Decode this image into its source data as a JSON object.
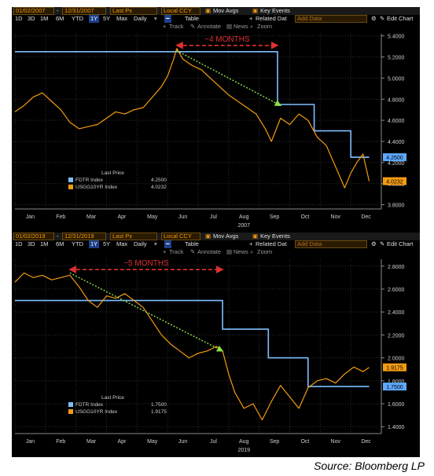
{
  "source": "Source: Bloomberg LP",
  "panels": [
    {
      "toolbar": {
        "start_date": "01/02/2007",
        "end_date": "12/31/2007",
        "field": "Last Px",
        "currency": "Local CCY",
        "mov_avgs": "Mov Avgs",
        "key_events": "Key Events",
        "periods": [
          "1D",
          "3D",
          "1M",
          "6M",
          "YTD",
          "1Y",
          "5Y",
          "Max"
        ],
        "active_period": "1Y",
        "frequency": "Daily",
        "table": "Table",
        "related_data": "Related Dat",
        "add_data": "Add Data",
        "edit_chart": "Edit Chart",
        "track": "Track",
        "annotate": "Annotate",
        "news": "News",
        "zoom": "Zoom"
      },
      "annotation": "~4 MONTHS",
      "legend": {
        "title": "Last Price",
        "items": [
          {
            "name": "FDTR Index",
            "value": "4.2500"
          },
          {
            "name": "USGG10YR Index",
            "value": "4.0232"
          }
        ]
      },
      "year_label": "2007",
      "chart_data": {
        "type": "line",
        "x_labels": [
          "Jan",
          "Feb",
          "Mar",
          "Apr",
          "May",
          "Jun",
          "Jul",
          "Aug",
          "Sep",
          "Oct",
          "Nov",
          "Dec"
        ],
        "y_ticks": [
          "5.4000",
          "5.2000",
          "5.0000",
          "4.8000",
          "4.6000",
          "4.4000",
          "4.2000",
          "4.0000",
          "3.8000"
        ],
        "y_tick_values": [
          5.4,
          5.2,
          5.0,
          4.8,
          4.6,
          4.4,
          4.2,
          4.0,
          3.8
        ],
        "ylim": [
          3.76,
          5.42
        ],
        "last_labels": [
          {
            "text": "4.2500",
            "value": 4.25,
            "color": "#5fa8ff"
          },
          {
            "text": "4.0232",
            "value": 4.0232,
            "color": "#f39c12"
          }
        ],
        "series": [
          {
            "name": "FDTR Index",
            "color": "#7fbfff",
            "step": true,
            "points": [
              [
                0,
                5.25
              ],
              [
                8.6,
                5.25
              ],
              [
                8.6,
                4.75
              ],
              [
                9.8,
                4.75
              ],
              [
                9.8,
                4.5
              ],
              [
                11.0,
                4.5
              ],
              [
                11.0,
                4.25
              ],
              [
                11.6,
                4.25
              ]
            ]
          },
          {
            "name": "USGG10YR Index",
            "color": "#f39c12",
            "step": false,
            "points": [
              [
                0,
                4.68
              ],
              [
                0.3,
                4.74
              ],
              [
                0.6,
                4.82
              ],
              [
                0.9,
                4.86
              ],
              [
                1.2,
                4.78
              ],
              [
                1.5,
                4.7
              ],
              [
                1.8,
                4.58
              ],
              [
                2.1,
                4.52
              ],
              [
                2.4,
                4.54
              ],
              [
                2.7,
                4.56
              ],
              [
                3.0,
                4.62
              ],
              [
                3.3,
                4.68
              ],
              [
                3.6,
                4.66
              ],
              [
                3.9,
                4.7
              ],
              [
                4.2,
                4.72
              ],
              [
                4.5,
                4.82
              ],
              [
                4.8,
                4.92
              ],
              [
                5.0,
                5.02
              ],
              [
                5.2,
                5.18
              ],
              [
                5.3,
                5.28
              ],
              [
                5.5,
                5.18
              ],
              [
                5.8,
                5.12
              ],
              [
                6.1,
                5.08
              ],
              [
                6.4,
                5.0
              ],
              [
                6.7,
                4.92
              ],
              [
                7.0,
                4.84
              ],
              [
                7.3,
                4.78
              ],
              [
                7.6,
                4.72
              ],
              [
                7.9,
                4.66
              ],
              [
                8.2,
                4.52
              ],
              [
                8.4,
                4.4
              ],
              [
                8.7,
                4.62
              ],
              [
                9.0,
                4.56
              ],
              [
                9.3,
                4.66
              ],
              [
                9.6,
                4.6
              ],
              [
                9.9,
                4.44
              ],
              [
                10.2,
                4.36
              ],
              [
                10.5,
                4.16
              ],
              [
                10.8,
                3.96
              ],
              [
                11.0,
                4.1
              ],
              [
                11.2,
                4.2
              ],
              [
                11.4,
                4.28
              ],
              [
                11.6,
                4.0232
              ]
            ]
          }
        ],
        "arrow": {
          "from": [
            5.3,
            5.26
          ],
          "to": [
            8.7,
            4.74
          ],
          "color": "#8ee04a"
        },
        "span": {
          "from": 5.3,
          "to": 8.6,
          "value": 5.31,
          "color": "#e03030"
        }
      }
    },
    {
      "toolbar": {
        "start_date": "01/02/2019",
        "end_date": "12/31/2019",
        "field": "Last Px",
        "currency": "Local CCY",
        "mov_avgs": "Mov Avgs",
        "key_events": "Key Events",
        "periods": [
          "1D",
          "3D",
          "1M",
          "6M",
          "YTD",
          "1Y",
          "5Y",
          "Max"
        ],
        "active_period": "1Y",
        "frequency": "Daily",
        "table": "Table",
        "related_data": "Related Dat",
        "add_data": "Add Data",
        "edit_chart": "Edit Chart",
        "track": "Track",
        "annotate": "Annotate",
        "news": "News",
        "zoom": "Zoom"
      },
      "annotation": "~5 MONTHS",
      "legend": {
        "title": "Last Price",
        "items": [
          {
            "name": "FDTR Index",
            "value": "1.7500"
          },
          {
            "name": "USGG10YR Index",
            "value": "1.9175"
          }
        ]
      },
      "year_label": "2019",
      "chart_data": {
        "type": "line",
        "x_labels": [
          "Jan",
          "Feb",
          "Mar",
          "Apr",
          "May",
          "Jun",
          "Jul",
          "Aug",
          "Sep",
          "Oct",
          "Nov",
          "Dec"
        ],
        "y_ticks": [
          "2.8000",
          "2.6000",
          "2.4000",
          "2.2000",
          "2.0000",
          "1.8000",
          "1.6000",
          "1.4000"
        ],
        "y_tick_values": [
          2.8,
          2.6,
          2.4,
          2.2,
          2.0,
          1.8,
          1.6,
          1.4
        ],
        "ylim": [
          1.34,
          2.86
        ],
        "last_labels": [
          {
            "text": "1.9175",
            "value": 1.9175,
            "color": "#f39c12"
          },
          {
            "text": "1.7500",
            "value": 1.75,
            "color": "#5fa8ff"
          }
        ],
        "series": [
          {
            "name": "FDTR Index",
            "color": "#7fbfff",
            "step": true,
            "points": [
              [
                0,
                2.5
              ],
              [
                6.8,
                2.5
              ],
              [
                6.8,
                2.25
              ],
              [
                8.3,
                2.25
              ],
              [
                8.3,
                2.0
              ],
              [
                9.6,
                2.0
              ],
              [
                9.6,
                1.75
              ],
              [
                11.6,
                1.75
              ]
            ]
          },
          {
            "name": "USGG10YR Index",
            "color": "#f39c12",
            "step": false,
            "points": [
              [
                0,
                2.66
              ],
              [
                0.3,
                2.74
              ],
              [
                0.6,
                2.7
              ],
              [
                0.9,
                2.72
              ],
              [
                1.2,
                2.68
              ],
              [
                1.5,
                2.7
              ],
              [
                1.8,
                2.72
              ],
              [
                2.1,
                2.62
              ],
              [
                2.4,
                2.5
              ],
              [
                2.7,
                2.44
              ],
              [
                3.0,
                2.54
              ],
              [
                3.3,
                2.52
              ],
              [
                3.6,
                2.56
              ],
              [
                3.9,
                2.5
              ],
              [
                4.2,
                2.44
              ],
              [
                4.5,
                2.32
              ],
              [
                4.8,
                2.2
              ],
              [
                5.1,
                2.12
              ],
              [
                5.4,
                2.06
              ],
              [
                5.7,
                2.0
              ],
              [
                6.0,
                2.04
              ],
              [
                6.3,
                2.06
              ],
              [
                6.6,
                2.1
              ],
              [
                6.8,
                2.06
              ],
              [
                7.0,
                1.86
              ],
              [
                7.2,
                1.7
              ],
              [
                7.5,
                1.56
              ],
              [
                7.8,
                1.6
              ],
              [
                8.1,
                1.46
              ],
              [
                8.4,
                1.62
              ],
              [
                8.7,
                1.76
              ],
              [
                9.0,
                1.66
              ],
              [
                9.3,
                1.56
              ],
              [
                9.6,
                1.74
              ],
              [
                9.9,
                1.8
              ],
              [
                10.2,
                1.82
              ],
              [
                10.5,
                1.78
              ],
              [
                10.8,
                1.86
              ],
              [
                11.1,
                1.92
              ],
              [
                11.4,
                1.88
              ],
              [
                11.6,
                1.9175
              ]
            ]
          }
        ],
        "arrow": {
          "from": [
            1.8,
            2.74
          ],
          "to": [
            6.8,
            2.06
          ],
          "color": "#8ee04a"
        },
        "span": {
          "from": 1.8,
          "to": 6.8,
          "value": 2.77,
          "color": "#e03030"
        }
      }
    }
  ]
}
